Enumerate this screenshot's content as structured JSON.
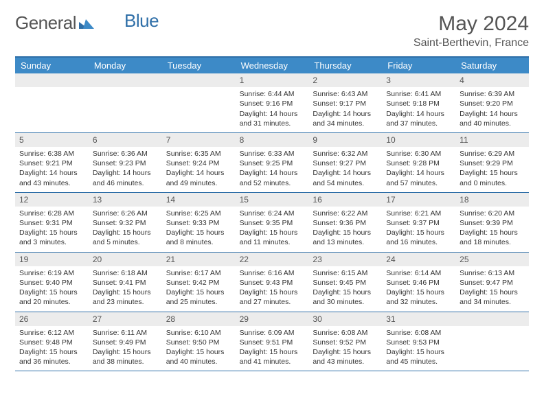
{
  "logo": {
    "text1": "General",
    "text2": "Blue"
  },
  "title": "May 2024",
  "location": "Saint-Berthevin, France",
  "colors": {
    "header_bg": "#3d8ac7",
    "border": "#2f6fa8",
    "daynum_bg": "#ececec",
    "text": "#333333",
    "muted": "#555555"
  },
  "day_names": [
    "Sunday",
    "Monday",
    "Tuesday",
    "Wednesday",
    "Thursday",
    "Friday",
    "Saturday"
  ],
  "weeks": [
    [
      null,
      null,
      null,
      {
        "n": "1",
        "sr": "6:44 AM",
        "ss": "9:16 PM",
        "dl": "14 hours and 31 minutes."
      },
      {
        "n": "2",
        "sr": "6:43 AM",
        "ss": "9:17 PM",
        "dl": "14 hours and 34 minutes."
      },
      {
        "n": "3",
        "sr": "6:41 AM",
        "ss": "9:18 PM",
        "dl": "14 hours and 37 minutes."
      },
      {
        "n": "4",
        "sr": "6:39 AM",
        "ss": "9:20 PM",
        "dl": "14 hours and 40 minutes."
      }
    ],
    [
      {
        "n": "5",
        "sr": "6:38 AM",
        "ss": "9:21 PM",
        "dl": "14 hours and 43 minutes."
      },
      {
        "n": "6",
        "sr": "6:36 AM",
        "ss": "9:23 PM",
        "dl": "14 hours and 46 minutes."
      },
      {
        "n": "7",
        "sr": "6:35 AM",
        "ss": "9:24 PM",
        "dl": "14 hours and 49 minutes."
      },
      {
        "n": "8",
        "sr": "6:33 AM",
        "ss": "9:25 PM",
        "dl": "14 hours and 52 minutes."
      },
      {
        "n": "9",
        "sr": "6:32 AM",
        "ss": "9:27 PM",
        "dl": "14 hours and 54 minutes."
      },
      {
        "n": "10",
        "sr": "6:30 AM",
        "ss": "9:28 PM",
        "dl": "14 hours and 57 minutes."
      },
      {
        "n": "11",
        "sr": "6:29 AM",
        "ss": "9:29 PM",
        "dl": "15 hours and 0 minutes."
      }
    ],
    [
      {
        "n": "12",
        "sr": "6:28 AM",
        "ss": "9:31 PM",
        "dl": "15 hours and 3 minutes."
      },
      {
        "n": "13",
        "sr": "6:26 AM",
        "ss": "9:32 PM",
        "dl": "15 hours and 5 minutes."
      },
      {
        "n": "14",
        "sr": "6:25 AM",
        "ss": "9:33 PM",
        "dl": "15 hours and 8 minutes."
      },
      {
        "n": "15",
        "sr": "6:24 AM",
        "ss": "9:35 PM",
        "dl": "15 hours and 11 minutes."
      },
      {
        "n": "16",
        "sr": "6:22 AM",
        "ss": "9:36 PM",
        "dl": "15 hours and 13 minutes."
      },
      {
        "n": "17",
        "sr": "6:21 AM",
        "ss": "9:37 PM",
        "dl": "15 hours and 16 minutes."
      },
      {
        "n": "18",
        "sr": "6:20 AM",
        "ss": "9:39 PM",
        "dl": "15 hours and 18 minutes."
      }
    ],
    [
      {
        "n": "19",
        "sr": "6:19 AM",
        "ss": "9:40 PM",
        "dl": "15 hours and 20 minutes."
      },
      {
        "n": "20",
        "sr": "6:18 AM",
        "ss": "9:41 PM",
        "dl": "15 hours and 23 minutes."
      },
      {
        "n": "21",
        "sr": "6:17 AM",
        "ss": "9:42 PM",
        "dl": "15 hours and 25 minutes."
      },
      {
        "n": "22",
        "sr": "6:16 AM",
        "ss": "9:43 PM",
        "dl": "15 hours and 27 minutes."
      },
      {
        "n": "23",
        "sr": "6:15 AM",
        "ss": "9:45 PM",
        "dl": "15 hours and 30 minutes."
      },
      {
        "n": "24",
        "sr": "6:14 AM",
        "ss": "9:46 PM",
        "dl": "15 hours and 32 minutes."
      },
      {
        "n": "25",
        "sr": "6:13 AM",
        "ss": "9:47 PM",
        "dl": "15 hours and 34 minutes."
      }
    ],
    [
      {
        "n": "26",
        "sr": "6:12 AM",
        "ss": "9:48 PM",
        "dl": "15 hours and 36 minutes."
      },
      {
        "n": "27",
        "sr": "6:11 AM",
        "ss": "9:49 PM",
        "dl": "15 hours and 38 minutes."
      },
      {
        "n": "28",
        "sr": "6:10 AM",
        "ss": "9:50 PM",
        "dl": "15 hours and 40 minutes."
      },
      {
        "n": "29",
        "sr": "6:09 AM",
        "ss": "9:51 PM",
        "dl": "15 hours and 41 minutes."
      },
      {
        "n": "30",
        "sr": "6:08 AM",
        "ss": "9:52 PM",
        "dl": "15 hours and 43 minutes."
      },
      {
        "n": "31",
        "sr": "6:08 AM",
        "ss": "9:53 PM",
        "dl": "15 hours and 45 minutes."
      },
      null
    ]
  ],
  "labels": {
    "sunrise": "Sunrise: ",
    "sunset": "Sunset: ",
    "daylight": "Daylight: "
  }
}
